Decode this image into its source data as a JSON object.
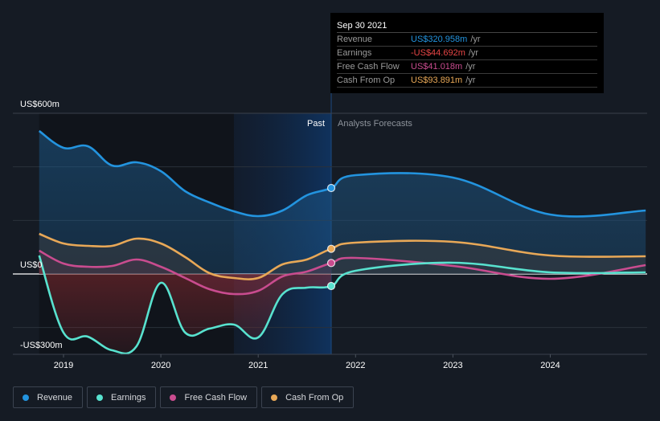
{
  "tooltip": {
    "date": "Sep 30 2021",
    "rows": [
      {
        "name": "Revenue",
        "value": "US$320.958m",
        "unit": "/yr",
        "color": "#2394df"
      },
      {
        "name": "Earnings",
        "value": "-US$44.692m",
        "unit": "/yr",
        "color": "#e64545"
      },
      {
        "name": "Free Cash Flow",
        "value": "US$41.018m",
        "unit": "/yr",
        "color": "#c94c8f"
      },
      {
        "name": "Cash From Op",
        "value": "US$93.891m",
        "unit": "/yr",
        "color": "#e8a857"
      }
    ]
  },
  "legend": [
    {
      "label": "Revenue",
      "color": "#2394df"
    },
    {
      "label": "Earnings",
      "color": "#58e2cf"
    },
    {
      "label": "Free Cash Flow",
      "color": "#c94c8f"
    },
    {
      "label": "Cash From Op",
      "color": "#e8a857"
    }
  ],
  "chart_data": {
    "type": "line",
    "title": "",
    "xlabel": "",
    "ylabel": "",
    "unit": "US$ millions",
    "ylim": [
      -300,
      600
    ],
    "xlim": [
      2018.4,
      2024.98
    ],
    "y_tick_labels": [
      {
        "value": 600,
        "label": "US$600m"
      },
      {
        "value": 0,
        "label": "US$0"
      },
      {
        "value": -300,
        "label": "-US$300m"
      }
    ],
    "gridlines": [
      600,
      400,
      200,
      0,
      -200
    ],
    "x_ticks": [
      2019,
      2020,
      2021,
      2022,
      2023,
      2024
    ],
    "x_tick_labels": [
      "2019",
      "2020",
      "2021",
      "2022",
      "2023",
      "2024"
    ],
    "past_label": "Past",
    "forecast_label": "Analysts Forecasts",
    "divider_x": 2021.75,
    "past_shade_start": 2020.75,
    "series": [
      {
        "name": "Revenue",
        "color": "#2394df",
        "x": [
          2018.75,
          2019.0,
          2019.25,
          2019.5,
          2019.75,
          2020.0,
          2020.25,
          2020.5,
          2020.75,
          2021.0,
          2021.25,
          2021.5,
          2021.75,
          2022.0,
          2023.0,
          2024.0,
          2024.98
        ],
        "values": [
          534,
          471,
          477,
          405,
          417,
          384,
          309,
          267,
          234,
          216,
          237,
          294,
          321,
          369,
          360,
          222,
          237
        ]
      },
      {
        "name": "Earnings",
        "color": "#58e2cf",
        "x": [
          2018.75,
          2019.0,
          2019.25,
          2019.5,
          2019.75,
          2020.0,
          2020.25,
          2020.5,
          2020.75,
          2021.0,
          2021.25,
          2021.5,
          2021.75,
          2022.0,
          2023.0,
          2024.0,
          2024.98
        ],
        "values": [
          69,
          -219,
          -234,
          -285,
          -270,
          -33,
          -219,
          -204,
          -189,
          -237,
          -75,
          -51,
          -45,
          12,
          42,
          6,
          6
        ]
      },
      {
        "name": "Free Cash Flow",
        "color": "#c94c8f",
        "x": [
          2018.75,
          2019.0,
          2019.25,
          2019.5,
          2019.75,
          2020.0,
          2020.25,
          2020.5,
          2020.75,
          2021.0,
          2021.25,
          2021.5,
          2021.75,
          2022.0,
          2023.0,
          2024.0,
          2024.98
        ],
        "values": [
          87,
          39,
          27,
          30,
          54,
          27,
          -15,
          -57,
          -75,
          -63,
          -9,
          9,
          41,
          60,
          30,
          -18,
          33
        ]
      },
      {
        "name": "Cash From Op",
        "color": "#e8a857",
        "x": [
          2018.75,
          2019.0,
          2019.25,
          2019.5,
          2019.75,
          2020.0,
          2020.25,
          2020.5,
          2020.75,
          2021.0,
          2021.25,
          2021.5,
          2021.75,
          2022.0,
          2023.0,
          2024.0,
          2024.98
        ],
        "values": [
          150,
          114,
          105,
          105,
          132,
          114,
          63,
          3,
          -15,
          -15,
          36,
          54,
          94,
          117,
          120,
          69,
          66
        ]
      }
    ]
  }
}
